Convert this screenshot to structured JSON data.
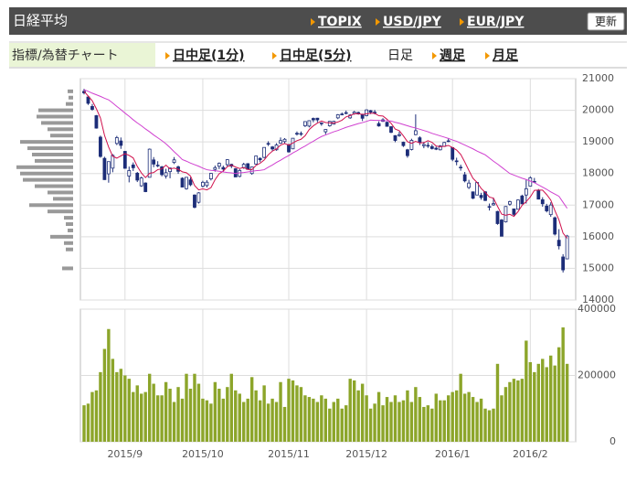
{
  "header": {
    "title": "日経平均",
    "links": [
      "TOPIX",
      "USD/JPY",
      "EUR/JPY"
    ],
    "button": "更新"
  },
  "tabs": {
    "label": "指標/為替チャート",
    "items": [
      "日中足(1分)",
      "日中足(5分)",
      "日足",
      "週足",
      "月足"
    ],
    "current": 2
  },
  "chart_data": [
    {
      "type": "candlestick",
      "open": [
        20600,
        20420,
        20120,
        19830,
        19150,
        18480,
        17990,
        18170,
        18950,
        19030,
        18700,
        17920,
        18270,
        18010,
        17610,
        17700,
        17880,
        18430,
        18250,
        18210,
        17920,
        18060,
        18350,
        18210,
        17850,
        17520,
        17800,
        17320,
        17090,
        17600,
        17620,
        17830,
        18130,
        18230,
        18190,
        18280,
        18290,
        18150,
        17910,
        18180,
        18310,
        18000,
        18300,
        18480,
        18510,
        18950,
        18840,
        18750,
        18960,
        19010,
        18920,
        18780,
        19270,
        19240,
        19510,
        19500,
        19740,
        19750,
        19580,
        19320,
        19510,
        19560,
        19760,
        19870,
        19900,
        19760,
        19900,
        19930,
        19870,
        19830,
        19990,
        19930,
        19580,
        19650,
        19620,
        19480,
        19200,
        19200,
        18990,
        18750,
        18760,
        19230,
        19130,
        18880,
        18890,
        18850,
        18800,
        18750,
        18860,
        19030,
        18820,
        18400,
        18200,
        17960,
        17560,
        17420,
        17320,
        17310,
        17420,
        16940,
        17010,
        16800,
        16530,
        16470,
        17030,
        16880,
        16870,
        17290,
        17320,
        17600,
        17750,
        17470,
        17170,
        16970,
        16700,
        16600,
        15890,
        15360,
        15300
      ],
      "high": [
        20680,
        20450,
        20200,
        19850,
        19200,
        18530,
        18380,
        18610,
        19190,
        19140,
        18710,
        18220,
        18350,
        18050,
        17900,
        17720,
        18790,
        18520,
        18390,
        18240,
        18150,
        18190,
        18520,
        18250,
        17880,
        17880,
        17880,
        17340,
        17410,
        17770,
        17790,
        18020,
        18250,
        18350,
        18250,
        18450,
        18310,
        18170,
        18140,
        18340,
        18330,
        18210,
        18560,
        18510,
        18830,
        19020,
        18870,
        18960,
        19140,
        19120,
        18930,
        19120,
        19330,
        19330,
        19650,
        19680,
        19770,
        19760,
        19620,
        19400,
        19660,
        19670,
        19880,
        19930,
        19990,
        19880,
        19980,
        19960,
        19890,
        20030,
        20010,
        20010,
        19650,
        19750,
        19640,
        19500,
        19210,
        19320,
        19010,
        18780,
        19100,
        19870,
        19180,
        19000,
        18990,
        18920,
        18850,
        18900,
        19000,
        19120,
        18830,
        18500,
        18280,
        18050,
        17800,
        17430,
        17720,
        17390,
        17440,
        17050,
        17240,
        16820,
        16560,
        16970,
        17140,
        16890,
        17180,
        17330,
        17800,
        17910,
        17860,
        17510,
        17250,
        17040,
        17090,
        16640,
        16240,
        15450,
        16060
      ],
      "low": [
        20500,
        20170,
        19990,
        19420,
        18500,
        17800,
        17710,
        18040,
        18900,
        18780,
        18150,
        17720,
        18080,
        17730,
        17580,
        17410,
        17880,
        18200,
        18200,
        17910,
        17840,
        17850,
        18300,
        17990,
        17570,
        17490,
        17600,
        16900,
        17050,
        17560,
        17560,
        17780,
        18060,
        18140,
        18060,
        18210,
        18170,
        17890,
        17880,
        18150,
        18120,
        17960,
        18280,
        18360,
        18480,
        18870,
        18720,
        18720,
        18940,
        18940,
        18660,
        18770,
        19200,
        19190,
        19470,
        19460,
        19620,
        19620,
        19510,
        19240,
        19480,
        19550,
        19720,
        19840,
        19870,
        19730,
        19860,
        19860,
        19660,
        19810,
        19880,
        19870,
        19480,
        19630,
        19480,
        19280,
        18990,
        19160,
        18840,
        18500,
        18730,
        19210,
        18900,
        18800,
        18810,
        18760,
        18740,
        18730,
        18840,
        18990,
        18390,
        18260,
        18090,
        17720,
        17510,
        17190,
        17310,
        17170,
        17130,
        16830,
        16980,
        16380,
        16010,
        16450,
        16980,
        16660,
        16860,
        17030,
        17050,
        17590,
        17700,
        17180,
        16950,
        16770,
        16630,
        16040,
        15600,
        14870,
        15300
      ],
      "close": [
        20550,
        20220,
        20030,
        19435,
        18540,
        17806,
        18376,
        18574,
        19136,
        18890,
        18165,
        18095,
        18183,
        17792,
        17860,
        17427,
        18770,
        18299,
        18264,
        17965,
        18026,
        18171,
        18432,
        18070,
        17571,
        17880,
        17645,
        16931,
        17388,
        17722,
        17725,
        18005,
        18186,
        18322,
        18141,
        18438,
        18234,
        17891,
        18097,
        18291,
        18131,
        18207,
        18554,
        18435,
        18825,
        18947,
        18777,
        18903,
        19041,
        19083,
        18684,
        19116,
        19265,
        19265,
        19642,
        19671,
        19697,
        19697,
        19596,
        19393,
        19649,
        19649,
        19859,
        19879,
        19924,
        19847,
        19944,
        19883,
        19747,
        20012,
        19939,
        19940,
        19504,
        19698,
        19492,
        19301,
        19046,
        19230,
        18883,
        18565,
        19049,
        19353,
        18986,
        18916,
        18886,
        18789,
        18769,
        18873,
        18982,
        19033,
        18450,
        18374,
        18191,
        17767,
        17697,
        17218,
        17715,
        17240,
        17147,
        16955,
        17048,
        16416,
        16017,
        16958,
        17110,
        16708,
        17163,
        17041,
        17518,
        17865,
        17750,
        17191,
        17044,
        16819,
        17004,
        16085,
        15713,
        14952,
        16022
      ],
      "up_color": "#ffffff",
      "down_color": "#1c2d78",
      "series": [
        {
          "color": "#d0104c",
          "values": [
            20600,
            20450,
            20300,
            20050,
            19755,
            19206,
            18837,
            18546,
            18486,
            18556,
            18628,
            18572,
            18494,
            18225,
            18019,
            17871,
            18006,
            18030,
            18124,
            18145,
            18265,
            18145,
            18172,
            18133,
            18054,
            18025,
            17920,
            17619,
            17483,
            17513,
            17482,
            17554,
            17805,
            17992,
            18076,
            18218,
            18264,
            18205,
            18160,
            18190,
            18129,
            18123,
            18256,
            18324,
            18430,
            18594,
            18708,
            18777,
            18899,
            18950,
            18898,
            18965,
            19038,
            19083,
            19194,
            19392,
            19508,
            19594,
            19661,
            19611,
            19606,
            19597,
            19629,
            19686,
            19792,
            19832,
            19891,
            19895,
            19869,
            19887,
            19905,
            19904,
            19828,
            19819,
            19715,
            19587,
            19408,
            19353,
            19190,
            19005,
            18955,
            19016,
            18967,
            18974,
            19038,
            18986,
            18869,
            18847,
            18860,
            18889,
            18821,
            18742,
            18606,
            18363,
            18096,
            17849,
            17718,
            17527,
            17403,
            17255,
            17221,
            16961,
            16717,
            16679,
            16710,
            16642,
            16791,
            16996,
            17108,
            17259,
            17467,
            17473,
            17474,
            17334,
            17162,
            16829,
            16533,
            16115,
            15955
          ]
        },
        {
          "color": "#d040d0",
          "values": [
            20650,
            20600,
            20540,
            20490,
            20440,
            20380,
            20330,
            20230,
            20120,
            20020,
            19910,
            19810,
            19700,
            19600,
            19510,
            19410,
            19320,
            19220,
            19130,
            19040,
            18940,
            18820,
            18690,
            18570,
            18440,
            18390,
            18330,
            18280,
            18230,
            18170,
            18120,
            18100,
            18090,
            18070,
            18050,
            18030,
            18020,
            18000,
            18020,
            18030,
            18050,
            18070,
            18090,
            18100,
            18120,
            18200,
            18270,
            18350,
            18420,
            18500,
            18570,
            18650,
            18720,
            18800,
            18870,
            18950,
            19020,
            19100,
            19170,
            19220,
            19270,
            19320,
            19360,
            19410,
            19460,
            19500,
            19540,
            19580,
            19610,
            19650,
            19690,
            19680,
            19680,
            19670,
            19670,
            19660,
            19620,
            19590,
            19550,
            19510,
            19470,
            19440,
            19400,
            19360,
            19320,
            19270,
            19230,
            19190,
            19150,
            19110,
            19060,
            19020,
            18960,
            18900,
            18840,
            18780,
            18710,
            18650,
            18590,
            18490,
            18390,
            18300,
            18200,
            18100,
            18000,
            17950,
            17900,
            17850,
            17810,
            17760,
            17710,
            17640,
            17570,
            17500,
            17420,
            17350,
            17280,
            17090,
            16900
          ]
        }
      ],
      "volume_profile": {
        "color": "#999999",
        "prices": [
          20600,
          20400,
          20200,
          20000,
          19800,
          19600,
          19400,
          19200,
          19000,
          18800,
          18600,
          18400,
          18200,
          18000,
          17800,
          17600,
          17400,
          17200,
          17000,
          16800,
          16600,
          16400,
          16200,
          16000,
          15800,
          15600,
          15000
        ],
        "values": [
          6,
          5,
          8,
          38,
          40,
          35,
          28,
          25,
          58,
          50,
          45,
          42,
          62,
          58,
          55,
          42,
          28,
          22,
          48,
          28,
          10,
          8,
          6,
          25,
          10,
          8,
          12
        ]
      },
      "ylim": [
        14000,
        21000
      ],
      "yticks": [
        14000,
        15000,
        16000,
        17000,
        18000,
        19000,
        20000,
        21000
      ],
      "xticks": [
        {
          "value": 10,
          "label": "2015/9"
        },
        {
          "value": 29,
          "label": "2015/10"
        },
        {
          "value": 50,
          "label": "2015/11"
        },
        {
          "value": 69,
          "label": "2015/12"
        },
        {
          "value": 90,
          "label": "2016/1"
        },
        {
          "value": 109,
          "label": "2016/2"
        }
      ],
      "grid": true
    },
    {
      "type": "bar",
      "color": "#8ca52a",
      "values": [
        110000,
        115000,
        150000,
        155000,
        210000,
        280000,
        340000,
        250000,
        210000,
        220000,
        200000,
        190000,
        150000,
        170000,
        145000,
        150000,
        205000,
        175000,
        140000,
        140000,
        180000,
        160000,
        120000,
        165000,
        130000,
        205000,
        160000,
        205000,
        175000,
        130000,
        125000,
        115000,
        180000,
        160000,
        130000,
        165000,
        205000,
        155000,
        145000,
        120000,
        130000,
        195000,
        155000,
        125000,
        170000,
        115000,
        130000,
        120000,
        180000,
        105000,
        190000,
        185000,
        170000,
        165000,
        140000,
        135000,
        130000,
        120000,
        140000,
        130000,
        100000,
        120000,
        130000,
        100000,
        110000,
        190000,
        185000,
        155000,
        175000,
        140000,
        100000,
        115000,
        150000,
        110000,
        135000,
        120000,
        140000,
        120000,
        125000,
        155000,
        120000,
        165000,
        135000,
        105000,
        110000,
        100000,
        145000,
        125000,
        125000,
        140000,
        150000,
        155000,
        205000,
        145000,
        150000,
        135000,
        120000,
        130000,
        100000,
        95000,
        100000,
        235000,
        140000,
        165000,
        180000,
        190000,
        185000,
        190000,
        305000,
        240000,
        210000,
        235000,
        250000,
        225000,
        260000,
        230000,
        285000,
        345000,
        235000
      ],
      "ylim": [
        0,
        400000
      ],
      "yticks": [
        0,
        200000,
        400000
      ],
      "grid": true
    }
  ]
}
